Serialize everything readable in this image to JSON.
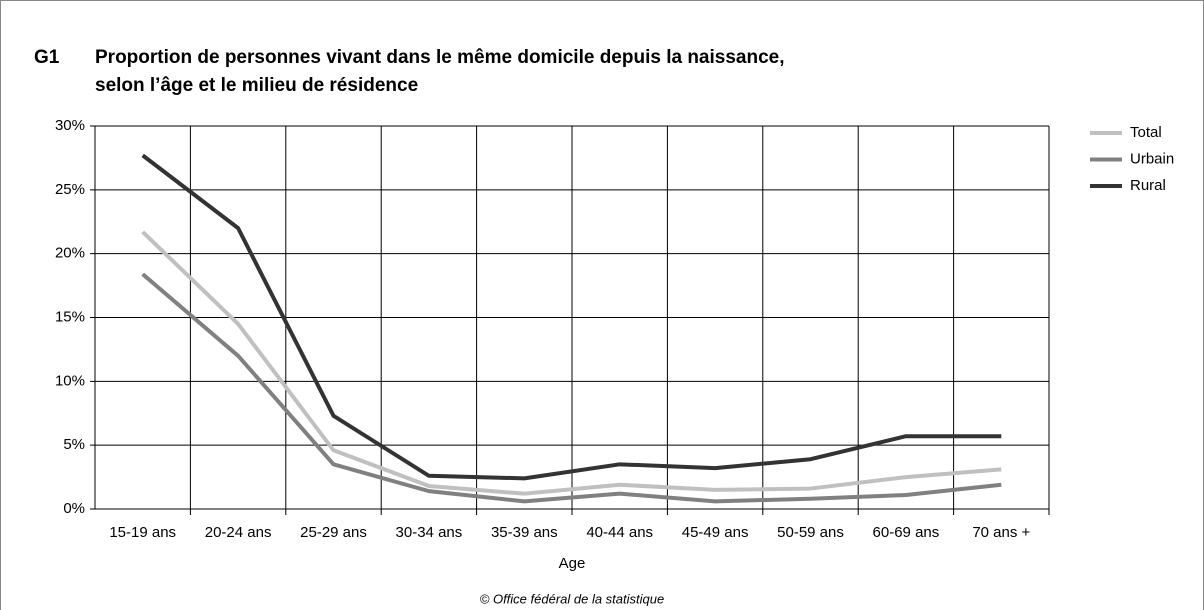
{
  "chart_data": {
    "type": "line",
    "figure_label": "G1",
    "title": [
      "Proportion de personnes vivant dans le même domicile depuis la naissance,",
      "selon l’âge et le milieu de résidence"
    ],
    "x_label": "Age",
    "source": "© Office fédéral de la statistique",
    "categories": [
      "15-19 ans",
      "20-24 ans",
      "25-29 ans",
      "30-34 ans",
      "35-39 ans",
      "40-44 ans",
      "45-49 ans",
      "50-59 ans",
      "60-69 ans",
      "70 ans +"
    ],
    "series": [
      {
        "name": "Total",
        "color": "#c0c0c0",
        "values": [
          21.7,
          14.5,
          4.6,
          1.8,
          1.2,
          1.9,
          1.5,
          1.6,
          2.5,
          3.1
        ]
      },
      {
        "name": "Urbain",
        "color": "#808080",
        "values": [
          18.4,
          12.0,
          3.5,
          1.4,
          0.6,
          1.2,
          0.6,
          0.8,
          1.1,
          1.9
        ]
      },
      {
        "name": "Rural",
        "color": "#333333",
        "values": [
          27.7,
          22.0,
          7.3,
          2.6,
          2.4,
          3.5,
          3.2,
          3.9,
          5.7,
          5.7
        ]
      }
    ],
    "ylim": [
      0,
      30
    ],
    "yticks": [
      {
        "value": 0,
        "label": "0%"
      },
      {
        "value": 5,
        "label": "5%"
      },
      {
        "value": 10,
        "label": "10%"
      },
      {
        "value": 15,
        "label": "15%"
      },
      {
        "value": 20,
        "label": "20%"
      },
      {
        "value": 25,
        "label": "25%"
      },
      {
        "value": 30,
        "label": "30%"
      }
    ],
    "grid": true,
    "legend": "right"
  }
}
